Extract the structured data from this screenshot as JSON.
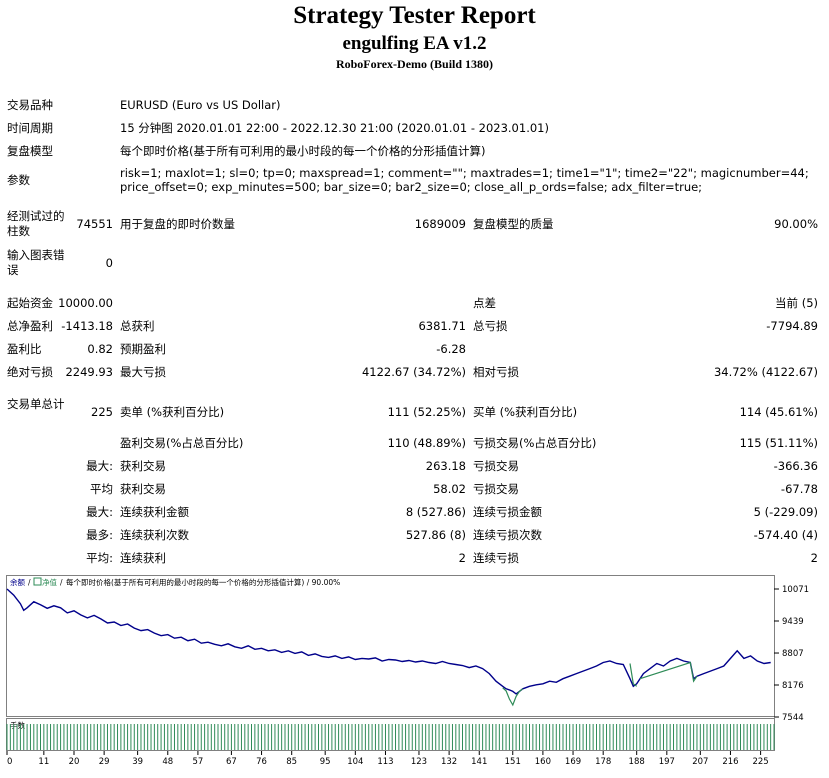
{
  "header": {
    "title": "Strategy Tester Report",
    "ea_name": "engulfing EA v1.2",
    "server": "RoboForex-Demo (Build 1380)"
  },
  "info": {
    "symbol_label": "交易品种",
    "symbol_value": "EURUSD (Euro vs US Dollar)",
    "period_label": "时间周期",
    "period_value": "15 分钟图 2020.01.01 22:00 - 2022.12.30 21:00 (2020.01.01 - 2023.01.01)",
    "model_label": "复盘模型",
    "model_value": "每个即时价格(基于所有可利用的最小时段的每一个价格的分形插值计算)",
    "params_label": "参数",
    "params_line1": "risk=1; maxlot=1; sl=0; tp=0; maxspread=1; comment=\"\"; maxtrades=1; time1=\"1\"; time2=\"22\"; magicnumber=44;",
    "params_line2": "price_offset=0; exp_minutes=500; bar_size=0; bar2_size=0; close_all_p_ords=false; adx_filter=true;"
  },
  "stats": {
    "bars_label": "经测试过的柱数",
    "bars_value": "74551",
    "ticks_label": "用于复盘的即时价数量",
    "ticks_value": "1689009",
    "quality_label": "复盘模型的质量",
    "quality_value": "90.00%",
    "errors_label": "输入图表错误",
    "errors_value": "0",
    "deposit_label": "起始资金",
    "deposit_value": "10000.00",
    "spread_label": "点差",
    "spread_value": "当前 (5)",
    "net_label": "总净盈利",
    "net_value": "-1413.18",
    "gross_profit_label": "总获利",
    "gross_profit_value": "6381.71",
    "gross_loss_label": "总亏损",
    "gross_loss_value": "-7794.89",
    "pf_label": "盈利比",
    "pf_value": "0.82",
    "payoff_label": "预期盈利",
    "payoff_value": "-6.28",
    "abs_dd_label": "绝对亏损",
    "abs_dd_value": "2249.93",
    "max_dd_label": "最大亏损",
    "max_dd_value": "4122.67 (34.72%)",
    "rel_dd_label": "相对亏损",
    "rel_dd_value": "34.72% (4122.67)",
    "trades_label": "交易单总计",
    "trades_value": "225",
    "short_label": "卖单 (%获利百分比)",
    "short_value": "111 (52.25%)",
    "long_label": "买单 (%获利百分比)",
    "long_value": "114 (45.61%)",
    "profit_trades_label": "盈利交易(%占总百分比)",
    "profit_trades_value": "110 (48.89%)",
    "loss_trades_label": "亏损交易(%占总百分比)",
    "loss_trades_value": "115 (51.11%)",
    "largest_prefix": "最大:",
    "largest_profit_label": "获利交易",
    "largest_profit_value": "263.18",
    "largest_loss_label": "亏损交易",
    "largest_loss_value": "-366.36",
    "avg_prefix": "平均",
    "avg_profit_label": "获利交易",
    "avg_profit_value": "58.02",
    "avg_loss_label": "亏损交易",
    "avg_loss_value": "-67.78",
    "max1_prefix": "最大:",
    "max_cons_wins_label": "连续获利金额",
    "max_cons_wins_value": "8 (527.86)",
    "max_cons_losses_label": "连续亏损金额",
    "max_cons_losses_value": "5 (-229.09)",
    "max2_prefix": "最多:",
    "max_cons_profit_label": "连续获利次数",
    "max_cons_profit_value": "527.86 (8)",
    "max_cons_loss_label": "连续亏损次数",
    "max_cons_loss_value": "-574.40 (4)",
    "avg2_prefix": "平均:",
    "avg_cons_wins_label": "连续获利",
    "avg_cons_wins_value": "2",
    "avg_cons_losses_label": "连续亏损",
    "avg_cons_losses_value": "2"
  },
  "chart_data": {
    "type": "line",
    "legend_text_1": "余额",
    "legend_text_2": "净值",
    "legend_text_3": "每个即时价格(基于所有可利用的最小时段的每一个价格的分形插值计算) / 90.00%",
    "lots_label": "手数",
    "y_ticks": [
      "10071",
      "9439",
      "8807",
      "8176",
      "7544"
    ],
    "y_tick_values": [
      10071,
      9439,
      8807,
      8176,
      7544
    ],
    "ylim": [
      7544,
      10071
    ],
    "x_ticks": [
      "0",
      "11",
      "20",
      "29",
      "39",
      "48",
      "57",
      "67",
      "76",
      "85",
      "95",
      "104",
      "113",
      "123",
      "132",
      "141",
      "151",
      "160",
      "169",
      "178",
      "188",
      "197",
      "207",
      "216",
      "225"
    ],
    "x_tick_values": [
      0,
      11,
      20,
      29,
      39,
      48,
      57,
      67,
      76,
      85,
      95,
      104,
      113,
      123,
      132,
      141,
      151,
      160,
      169,
      178,
      188,
      197,
      207,
      216,
      225
    ],
    "xlim": [
      0,
      229
    ],
    "colors": {
      "balance": "#00008b",
      "equity": "#2e8b57",
      "lots": "#2e8b57",
      "background": "#ffffff"
    },
    "series": [
      {
        "name": "余额",
        "x": [
          0,
          2,
          4,
          5,
          6,
          8,
          10,
          12,
          14,
          16,
          18,
          20,
          22,
          24,
          26,
          28,
          30,
          32,
          34,
          36,
          38,
          40,
          42,
          44,
          46,
          48,
          50,
          52,
          54,
          56,
          58,
          60,
          62,
          64,
          66,
          68,
          70,
          72,
          74,
          76,
          78,
          80,
          82,
          84,
          86,
          88,
          90,
          92,
          94,
          96,
          98,
          100,
          102,
          104,
          106,
          108,
          110,
          112,
          114,
          116,
          118,
          120,
          122,
          124,
          126,
          128,
          130,
          132,
          134,
          136,
          138,
          140,
          142,
          144,
          146,
          148,
          149,
          150,
          151,
          152,
          153,
          154,
          156,
          158,
          160,
          162,
          164,
          166,
          168,
          170,
          172,
          174,
          176,
          178,
          180,
          182,
          184,
          186,
          187,
          188,
          190,
          192,
          194,
          196,
          198,
          200,
          202,
          204,
          205,
          206,
          208,
          210,
          212,
          214,
          216,
          218,
          220,
          222,
          224,
          226,
          228
        ],
        "y": [
          10071,
          9950,
          9780,
          9650,
          9700,
          9820,
          9760,
          9690,
          9740,
          9700,
          9600,
          9640,
          9560,
          9500,
          9550,
          9480,
          9400,
          9420,
          9350,
          9380,
          9300,
          9250,
          9270,
          9200,
          9150,
          9170,
          9100,
          9120,
          9050,
          9080,
          9000,
          9020,
          8980,
          8950,
          8990,
          8930,
          8900,
          8950,
          8880,
          8900,
          8850,
          8870,
          8820,
          8850,
          8800,
          8830,
          8760,
          8790,
          8740,
          8720,
          8750,
          8700,
          8730,
          8680,
          8700,
          8690,
          8710,
          8650,
          8680,
          8670,
          8640,
          8660,
          8630,
          8650,
          8620,
          8600,
          8640,
          8600,
          8580,
          8560,
          8520,
          8550,
          8500,
          8400,
          8250,
          8150,
          8100,
          8080,
          8050,
          8000,
          8050,
          8100,
          8150,
          8180,
          8200,
          8250,
          8230,
          8300,
          8350,
          8400,
          8450,
          8500,
          8550,
          8620,
          8650,
          8600,
          8580,
          8300,
          8150,
          8200,
          8400,
          8500,
          8600,
          8550,
          8650,
          8700,
          8650,
          8620,
          8300,
          8350,
          8400,
          8450,
          8500,
          8550,
          8700,
          8850,
          8700,
          8750,
          8650,
          8600,
          8620
        ]
      },
      {
        "name": "净值",
        "x": [
          148,
          149,
          150,
          151,
          152,
          153,
          154,
          186,
          187,
          188,
          189,
          204,
          205,
          206
        ],
        "y": [
          8120,
          8060,
          7900,
          7780,
          7950,
          8050,
          8100,
          8600,
          8200,
          8150,
          8300,
          8620,
          8250,
          8350
        ]
      }
    ],
    "lots_bar_values_note": ""
  }
}
